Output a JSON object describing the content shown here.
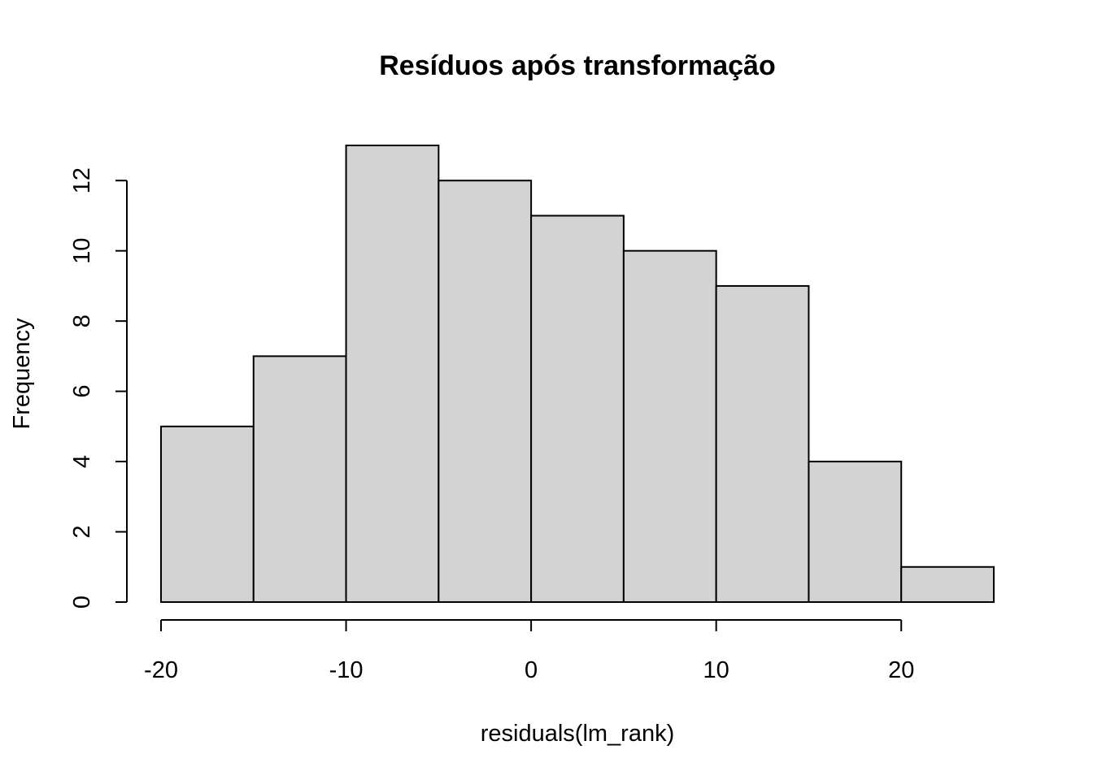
{
  "chart_data": {
    "type": "bar",
    "subtype": "histogram",
    "title": "Resíduos após transformação",
    "xlabel": "residuals(lm_rank)",
    "ylabel": "Frequency",
    "bin_edges": [
      -20,
      -15,
      -10,
      -5,
      0,
      5,
      10,
      15,
      20,
      25
    ],
    "values": [
      5,
      7,
      13,
      12,
      11,
      10,
      9,
      4,
      1
    ],
    "x_ticks": [
      -20,
      -10,
      0,
      10,
      20
    ],
    "y_ticks": [
      0,
      2,
      4,
      6,
      8,
      10,
      12
    ],
    "xlim": [
      -20,
      25
    ],
    "ylim": [
      0,
      13
    ],
    "bar_color": "#d3d3d3",
    "grid": false,
    "legend": "none"
  }
}
